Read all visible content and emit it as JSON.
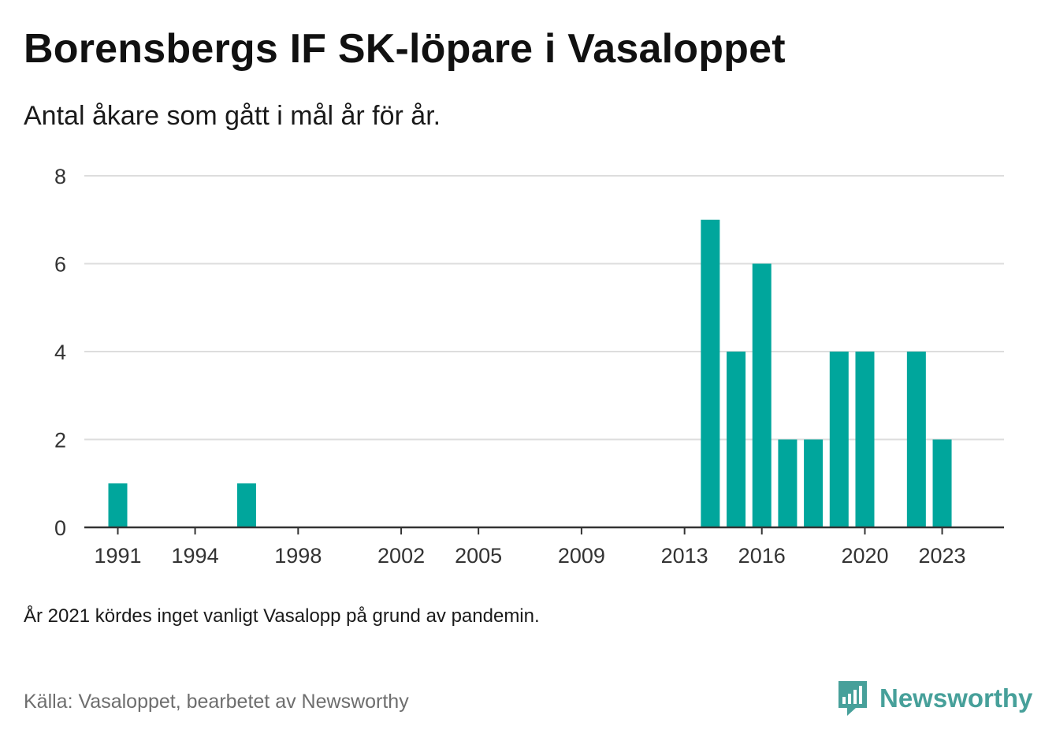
{
  "header": {
    "title": "Borensbergs IF SK-löpare i Vasaloppet",
    "subtitle": "Antal åkare som gått i mål år för år."
  },
  "footer": {
    "note": "År 2021 kördes inget vanligt Vasalopp på grund av pandemin.",
    "source": "Källa: Vasaloppet, bearbetet av Newsworthy",
    "brand": "Newsworthy"
  },
  "colors": {
    "bar": "#00a69c",
    "brand": "#47a09a",
    "grid": "#dddddd",
    "axis": "#333333"
  },
  "chart_data": {
    "type": "bar",
    "xlim": [
      1989.7,
      2025.4
    ],
    "ylim": [
      0,
      8
    ],
    "yticks": [
      0,
      2,
      4,
      6,
      8
    ],
    "xticks": [
      1991,
      1994,
      1998,
      2002,
      2005,
      2009,
      2013,
      2016,
      2020,
      2023
    ],
    "grid": true,
    "series": [
      {
        "x": [
          1991,
          1996,
          2014,
          2015,
          2016,
          2017,
          2018,
          2019,
          2020,
          2022,
          2023
        ],
        "values": [
          1,
          1,
          7,
          4,
          6,
          2,
          2,
          4,
          4,
          4,
          2
        ]
      }
    ]
  }
}
